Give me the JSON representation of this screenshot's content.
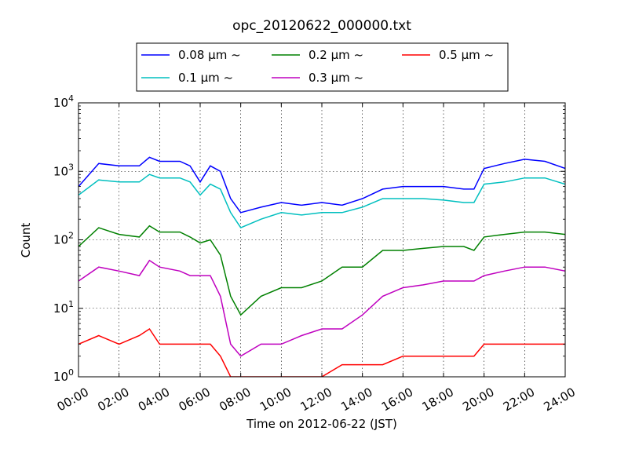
{
  "chart_data": {
    "type": "line",
    "title": "opc_20120622_000000.txt",
    "xlabel": "Time on 2012-06-22 (JST)",
    "ylabel": "Count",
    "yscale": "log",
    "grid": true,
    "legend_position": "top, above plot",
    "xlim": [
      "00:00",
      "24:00"
    ],
    "ylim": [
      1,
      10000
    ],
    "x_ticks": [
      "00:00",
      "02:00",
      "04:00",
      "06:00",
      "08:00",
      "10:00",
      "12:00",
      "14:00",
      "16:00",
      "18:00",
      "20:00",
      "22:00",
      "24:00"
    ],
    "y_ticks": [
      {
        "base": "10",
        "exp": "0",
        "value": 1
      },
      {
        "base": "10",
        "exp": "1",
        "value": 10
      },
      {
        "base": "10",
        "exp": "2",
        "value": 100
      },
      {
        "base": "10",
        "exp": "3",
        "value": 1000
      },
      {
        "base": "10",
        "exp": "4",
        "value": 10000
      }
    ],
    "x_hours": [
      0,
      1,
      2,
      3,
      3.5,
      4,
      5,
      5.5,
      6,
      6.5,
      7,
      7.5,
      8,
      9,
      10,
      11,
      12,
      13,
      14,
      15,
      16,
      17,
      18,
      19,
      19.5,
      20,
      21,
      22,
      23,
      24
    ],
    "series": [
      {
        "name": "0.08 μm ~",
        "color": "#0000ff",
        "values": [
          600,
          1300,
          1200,
          1200,
          1600,
          1400,
          1400,
          1200,
          700,
          1200,
          1000,
          400,
          250,
          300,
          350,
          320,
          350,
          320,
          400,
          550,
          600,
          600,
          600,
          550,
          550,
          1100,
          1300,
          1500,
          1400,
          1100
        ]
      },
      {
        "name": "0.1 μm ~",
        "color": "#00bfbf",
        "values": [
          450,
          750,
          700,
          700,
          900,
          800,
          800,
          700,
          450,
          650,
          550,
          250,
          150,
          200,
          250,
          230,
          250,
          250,
          300,
          400,
          400,
          400,
          380,
          350,
          350,
          650,
          700,
          800,
          800,
          650
        ]
      },
      {
        "name": "0.2 μm ~",
        "color": "#008000",
        "values": [
          80,
          150,
          120,
          110,
          160,
          130,
          130,
          110,
          90,
          100,
          60,
          15,
          8,
          15,
          20,
          20,
          25,
          40,
          40,
          70,
          70,
          75,
          80,
          80,
          70,
          110,
          120,
          130,
          130,
          120
        ]
      },
      {
        "name": "0.3 μm ~",
        "color": "#bf00bf",
        "values": [
          25,
          40,
          35,
          30,
          50,
          40,
          35,
          30,
          30,
          30,
          15,
          3,
          2,
          3,
          3,
          4,
          5,
          5,
          8,
          15,
          20,
          22,
          25,
          25,
          25,
          30,
          35,
          40,
          40,
          35
        ]
      },
      {
        "name": "0.5 μm ~",
        "color": "#ff0000",
        "values": [
          3,
          4,
          3,
          4,
          5,
          3,
          3,
          3,
          3,
          3,
          2,
          1,
          1,
          1,
          1,
          1,
          1,
          1.5,
          1.5,
          1.5,
          2,
          2,
          2,
          2,
          2,
          3,
          3,
          3,
          3,
          3
        ]
      }
    ]
  }
}
